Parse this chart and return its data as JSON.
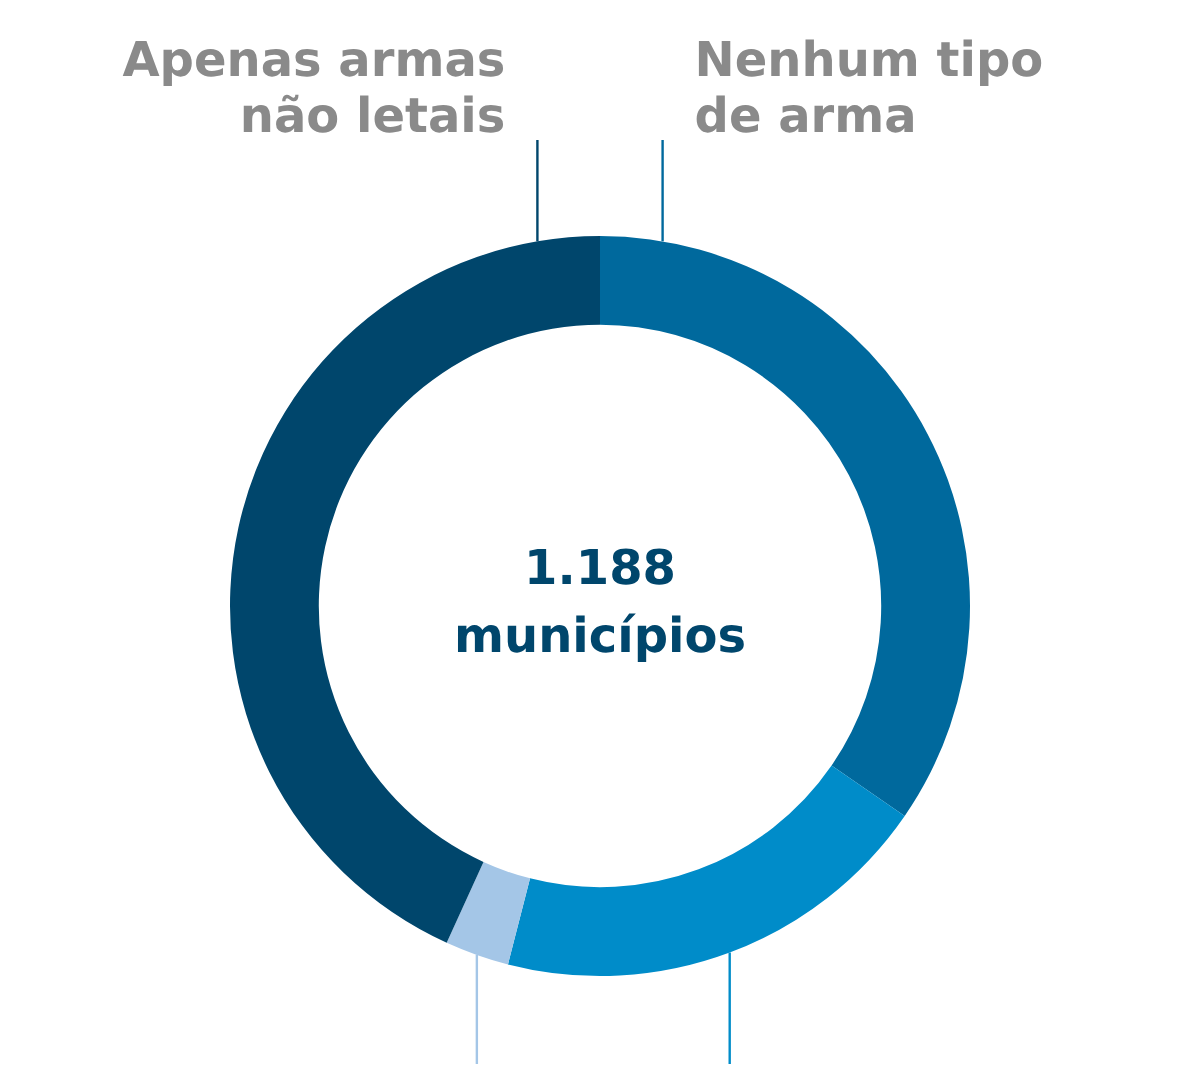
{
  "chart_data": {
    "type": "donut",
    "title": "1.188 municípios",
    "categories": [
      "Nenhum tipo de arma",
      null,
      null,
      "Apenas armas não letais"
    ],
    "values": [
      34.6,
      19.4,
      2.8,
      43.2
    ],
    "colors": [
      "#00699d",
      "#008cc9",
      "#a4c6e7",
      "#00466c"
    ],
    "legend": false
  }
}
